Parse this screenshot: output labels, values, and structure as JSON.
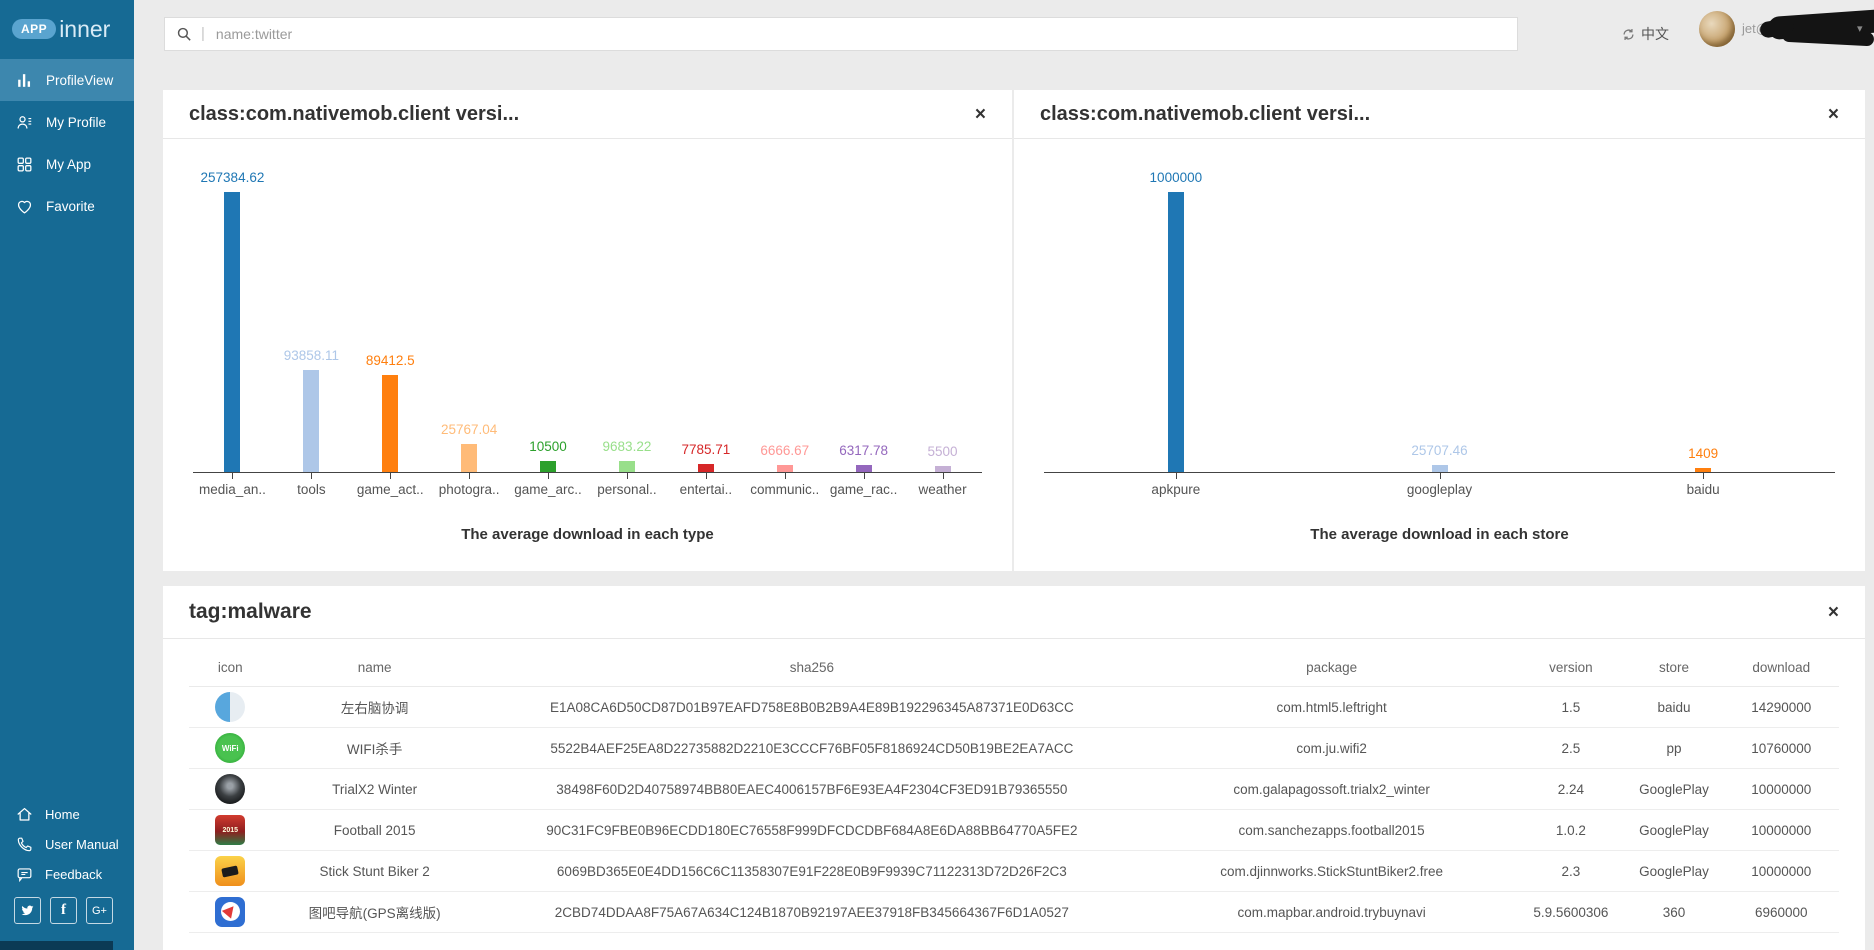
{
  "sidebar": {
    "logo": {
      "badge": "APP",
      "name": "inner"
    },
    "items": [
      {
        "label": "ProfileView",
        "icon": "bar-chart-icon",
        "active": true
      },
      {
        "label": "My Profile",
        "icon": "user-icon",
        "active": false
      },
      {
        "label": "My App",
        "icon": "grid-icon",
        "active": false
      },
      {
        "label": "Favorite",
        "icon": "heart-icon",
        "active": false
      }
    ],
    "footer_items": [
      {
        "label": "Home",
        "icon": "home-icon"
      },
      {
        "label": "User Manual",
        "icon": "phone-icon"
      },
      {
        "label": "Feedback",
        "icon": "chat-icon"
      }
    ],
    "social": [
      {
        "name": "twitter",
        "glyph": ""
      },
      {
        "name": "facebook",
        "glyph": "f"
      },
      {
        "name": "google-plus",
        "glyph": "G+"
      }
    ]
  },
  "topbar": {
    "search_prefix": "|",
    "search_placeholder": "name:twitter",
    "language_label": "中文",
    "user_email_visible": "jet@g",
    "caret": "▾"
  },
  "panels": {
    "chart1": {
      "title": "class:com.nativemob.client versi...",
      "close": "×"
    },
    "chart2": {
      "title": "class:com.nativemob.client versi...",
      "close": "×"
    },
    "table": {
      "title": "tag:malware",
      "close": "×"
    }
  },
  "chart_data": [
    {
      "type": "bar",
      "categories": [
        "media_an..",
        "tools",
        "game_act..",
        "photogra..",
        "game_arc..",
        "personal..",
        "entertai..",
        "communic..",
        "game_rac..",
        "weather"
      ],
      "values": [
        257384.62,
        93858.11,
        89412.5,
        25767.04,
        10500,
        9683.22,
        7785.71,
        6666.67,
        6317.78,
        5500
      ],
      "value_labels": [
        "257384.62",
        "93858.11",
        "89412.5",
        "25767.04",
        "10500",
        "9683.22",
        "7785.71",
        "6666.67",
        "6317.78",
        "5500"
      ],
      "colors": [
        "#1f77b4",
        "#aec7e8",
        "#ff7f0e",
        "#ffbb78",
        "#2ca02c",
        "#98df8a",
        "#d62728",
        "#ff9896",
        "#9467bd",
        "#c5b0d5"
      ],
      "title": "The average download in each type",
      "xlabel": "",
      "ylabel": "",
      "ylim": [
        0,
        257384.62
      ],
      "grid": false,
      "legend": false
    },
    {
      "type": "bar",
      "categories": [
        "apkpure",
        "googleplay",
        "baidu"
      ],
      "values": [
        1000000,
        25707.46,
        1409
      ],
      "value_labels": [
        "1000000",
        "25707.46",
        "1409"
      ],
      "colors": [
        "#1f77b4",
        "#aec7e8",
        "#ff7f0e"
      ],
      "title": "The average download in each store",
      "xlabel": "",
      "ylabel": "",
      "ylim": [
        0,
        1000000
      ],
      "grid": false,
      "legend": false
    }
  ],
  "table_panel": {
    "columns": [
      "icon",
      "name",
      "sha256",
      "package",
      "version",
      "store",
      "download"
    ],
    "col_widths_pct": [
      5,
      12.5,
      40.5,
      22.5,
      6.5,
      6,
      7
    ],
    "rows": [
      {
        "icon": "brain-app-icon",
        "name": "左右脑协调",
        "sha256": "E1A08CA6D50CD87D01B97EAFD758E8B0B2B9A4E89B192296345A87371E0D63CC",
        "package": "com.html5.leftright",
        "version": "1.5",
        "store": "baidu",
        "download": "14290000"
      },
      {
        "icon": "wifi-app-icon",
        "name": "WIFI杀手",
        "sha256": "5522B4AEF25EA8D22735882D2210E3CCCF76BF05F8186924CD50B19BE2EA7ACC",
        "package": "com.ju.wifi2",
        "version": "2.5",
        "store": "pp",
        "download": "10760000"
      },
      {
        "icon": "trialx2-app-icon",
        "name": "TrialX2 Winter",
        "sha256": "38498F60D2D40758974BB80EAEC4006157BF6E93EA4F2304CF3ED91B79365550",
        "package": "com.galapagossoft.trialx2_winter",
        "version": "2.24",
        "store": "GooglePlay",
        "download": "10000000"
      },
      {
        "icon": "football-app-icon",
        "name": "Football 2015",
        "sha256": "90C31FC9FBE0B96ECDD180EC76558F999DFCDCDBF684A8E6DA88BB64770A5FE2",
        "package": "com.sanchezapps.football2015",
        "version": "1.0.2",
        "store": "GooglePlay",
        "download": "10000000"
      },
      {
        "icon": "biker-app-icon",
        "name": "Stick Stunt Biker 2",
        "sha256": "6069BD365E0E4DD156C6C11358307E91F228E0B9F9939C71122313D72D26F2C3",
        "package": "com.djinnworks.StickStuntBiker2.free",
        "version": "2.3",
        "store": "GooglePlay",
        "download": "10000000"
      },
      {
        "icon": "mapbar-app-icon",
        "name": "图吧导航(GPS离线版)",
        "sha256": "2CBD74DDAA8F75A67A634C124B1870B92197AEE37918FB345664367F6D1A0527",
        "package": "com.mapbar.android.trybuynavi",
        "version": "5.9.5600306",
        "store": "360",
        "download": "6960000"
      }
    ]
  },
  "colors": {
    "sidebar_bg": "#166a94",
    "sidebar_active": "#3d87ae",
    "logo_badge_bg": "#5aa4cf",
    "page_bg": "#ebebeb",
    "panel_bg": "#ffffff",
    "axis": "#444444",
    "text_dark": "#333333",
    "text_muted": "#666666"
  }
}
